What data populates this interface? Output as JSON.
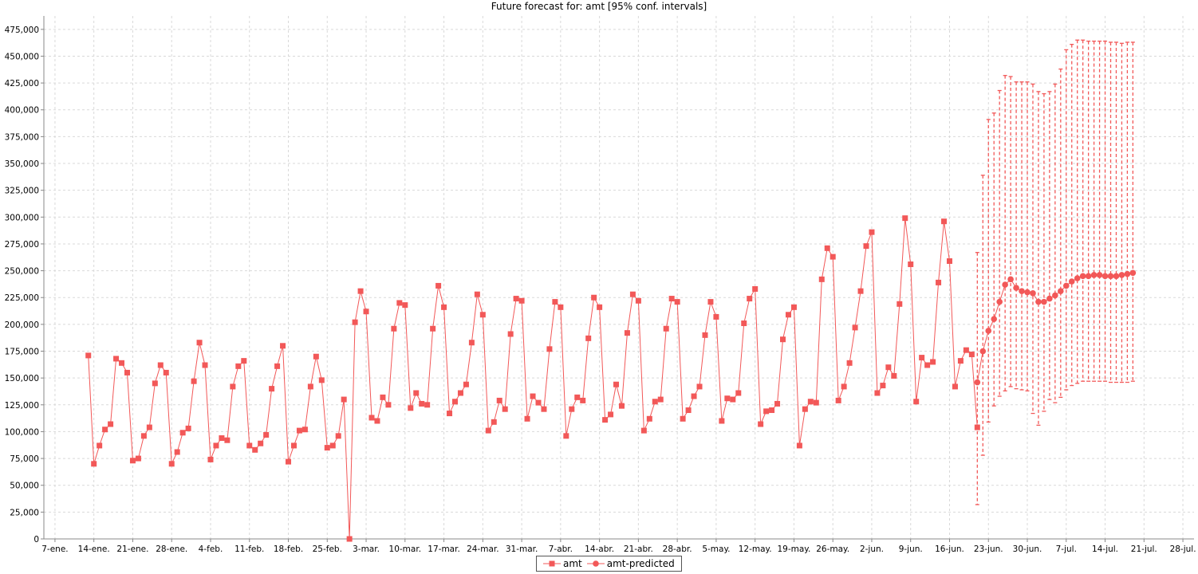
{
  "chart_data": {
    "type": "line",
    "title": "Future forecast for: amt [95% conf. intervals]",
    "xlabel": "",
    "ylabel": "",
    "ylim": [
      0,
      487500
    ],
    "y_ticks": [
      0,
      25000,
      50000,
      75000,
      100000,
      125000,
      150000,
      175000,
      200000,
      225000,
      250000,
      275000,
      300000,
      325000,
      350000,
      375000,
      400000,
      425000,
      450000,
      475000
    ],
    "y_tick_labels": [
      "0",
      "25,000",
      "50,000",
      "75,000",
      "100,000",
      "125,000",
      "150,000",
      "175,000",
      "200,000",
      "225,000",
      "250,000",
      "275,000",
      "300,000",
      "325,000",
      "350,000",
      "375,000",
      "400,000",
      "425,000",
      "450,000",
      "475,000"
    ],
    "x_tick_labels": [
      "7-ene.",
      "14-ene.",
      "21-ene.",
      "28-ene.",
      "4-feb.",
      "11-feb.",
      "18-feb.",
      "25-feb.",
      "3-mar.",
      "10-mar.",
      "17-mar.",
      "24-mar.",
      "31-mar.",
      "7-abr.",
      "14-abr.",
      "21-abr.",
      "28-abr.",
      "5-may.",
      "12-may.",
      "19-may.",
      "26-may.",
      "2-jun.",
      "9-jun.",
      "16-jun.",
      "23-jun.",
      "30-jun.",
      "7-jul.",
      "14-jul.",
      "21-jul.",
      "28-jul."
    ],
    "x_tick_days": [
      0,
      7,
      14,
      21,
      28,
      35,
      42,
      49,
      56,
      63,
      70,
      77,
      84,
      91,
      98,
      105,
      112,
      119,
      126,
      133,
      140,
      147,
      154,
      161,
      168,
      175,
      182,
      189,
      196,
      203
    ],
    "xlim_days": [
      -2,
      205
    ],
    "grid": true,
    "legend_position": "bottom",
    "color": "#f25858",
    "series": [
      {
        "name": "amt",
        "marker": "square",
        "start_day": 6,
        "values": [
          171000,
          70000,
          87000,
          102000,
          107000,
          168000,
          164000,
          155000,
          73000,
          75000,
          96000,
          104000,
          145000,
          162000,
          155000,
          70000,
          81000,
          99000,
          103000,
          147000,
          183000,
          162000,
          74000,
          87000,
          94000,
          92000,
          142000,
          161000,
          166000,
          87000,
          83000,
          89000,
          97000,
          140000,
          161000,
          180000,
          72000,
          87000,
          101000,
          102000,
          142000,
          170000,
          148000,
          85000,
          87000,
          96000,
          130000,
          0,
          202000,
          231000,
          212000,
          113000,
          110000,
          132000,
          125000,
          196000,
          220000,
          218000,
          122000,
          136000,
          126000,
          125000,
          196000,
          236000,
          216000,
          117000,
          128000,
          136000,
          144000,
          183000,
          228000,
          209000,
          101000,
          109000,
          129000,
          121000,
          191000,
          224000,
          222000,
          112000,
          133000,
          127000,
          121000,
          177000,
          221000,
          216000,
          96000,
          121000,
          132000,
          129000,
          187000,
          225000,
          216000,
          111000,
          116000,
          144000,
          124000,
          192000,
          228000,
          222000,
          101000,
          112000,
          128000,
          130000,
          196000,
          224000,
          221000,
          112000,
          120000,
          133000,
          142000,
          190000,
          221000,
          207000,
          110000,
          131000,
          130000,
          136000,
          201000,
          224000,
          233000,
          107000,
          119000,
          120000,
          126000,
          186000,
          209000,
          216000,
          87000,
          121000,
          128000,
          127000,
          242000,
          271000,
          263000,
          129000,
          142000,
          164000,
          197000,
          231000,
          273000,
          286000,
          136000,
          143000,
          160000,
          152000,
          219000,
          299000,
          256000,
          128000,
          169000,
          162000,
          165000,
          239000,
          296000,
          259000,
          142000,
          166000,
          176000,
          172000,
          104000
        ]
      },
      {
        "name": "amt-predicted",
        "marker": "circle",
        "start_day": 166,
        "values": [
          146000,
          175000,
          194000,
          205000,
          221000,
          237000,
          242000,
          234000,
          231000,
          230000,
          229000,
          221000,
          221000,
          224000,
          227000,
          231000,
          236000,
          240000,
          243000,
          245000,
          245000,
          246000,
          246000,
          245000,
          245000,
          245000,
          246000,
          247000,
          248000
        ],
        "ci_lower": [
          32000,
          78000,
          109000,
          124000,
          133000,
          138000,
          142000,
          140000,
          139000,
          138000,
          117000,
          106000,
          119000,
          130000,
          127000,
          132000,
          139000,
          143000,
          145000,
          147000,
          147000,
          147000,
          147000,
          147000,
          146000,
          146000,
          146000,
          146000,
          147000
        ],
        "ci_upper": [
          267000,
          339000,
          391000,
          397000,
          418000,
          432000,
          431000,
          426000,
          426000,
          426000,
          424000,
          417000,
          415000,
          417000,
          424000,
          438000,
          456000,
          461000,
          465000,
          465000,
          464000,
          464000,
          464000,
          464000,
          463000,
          463000,
          462000,
          463000,
          463000
        ]
      }
    ]
  }
}
